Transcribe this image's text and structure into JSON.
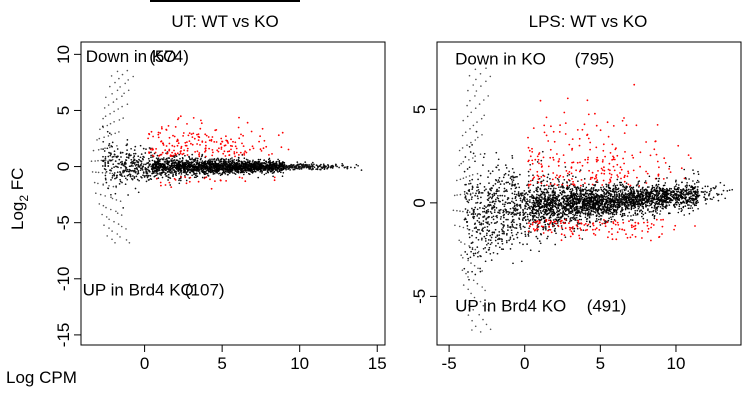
{
  "chart_data": [
    {
      "type": "scatter",
      "title": "UT: WT vs KO",
      "xlabel": "Log CPM",
      "ylabel_main": "Log",
      "ylabel_sub": "2",
      "ylabel_tail": " FC",
      "xlim": [
        -4.1,
        15.5
      ],
      "ylim": [
        -15.9,
        11.1
      ],
      "x_ticks": [
        0,
        5,
        10,
        15
      ],
      "y_ticks": [
        10,
        5,
        0,
        -5,
        -10,
        -15
      ],
      "annotations": [
        {
          "text": "Down in KO",
          "at": [
            -3.8,
            9.3
          ]
        },
        {
          "text": "(574)",
          "at": [
            0.3,
            9.3
          ]
        },
        {
          "text": "UP in Brd4 KO",
          "at": [
            -4.0,
            -11.5
          ]
        },
        {
          "text": "(107)",
          "at": [
            2.6,
            -11.5
          ]
        }
      ],
      "series": [
        {
          "color": "#000000",
          "extent": {
            "xmin": -3.5,
            "xmax": 14.3,
            "ymin": -7.0,
            "ymax": 8.8
          }
        },
        {
          "color": "#ff0000",
          "extent": {
            "xmin": 0.0,
            "xmax": 9.5,
            "ymin": -0.5,
            "ymax": 8.5
          }
        }
      ]
    },
    {
      "type": "scatter",
      "title": "LPS: WT vs KO",
      "xlabel": "",
      "xlim": [
        -5.8,
        14.3
      ],
      "ylim": [
        -7.6,
        8.6
      ],
      "x_ticks": [
        -5,
        0,
        5,
        10
      ],
      "y_ticks": [
        5,
        0,
        -5
      ],
      "annotations": [
        {
          "text": "Down in KO",
          "at": [
            -4.6,
            7.4
          ]
        },
        {
          "text": "(795)",
          "at": [
            3.3,
            7.4
          ]
        },
        {
          "text": "UP in Brd4 KO",
          "at": [
            -4.6,
            -5.8
          ]
        },
        {
          "text": "(491)",
          "at": [
            4.1,
            -5.8
          ]
        }
      ],
      "series": [
        {
          "color": "#000000",
          "extent": {
            "xmin": -4.8,
            "xmax": 13.8,
            "ymin": -7.0,
            "ymax": 7.5
          }
        },
        {
          "color": "#ff0000",
          "extent": {
            "xmin": 0.0,
            "xmax": 11.5,
            "ymin": -2.0,
            "ymax": 7.5
          }
        }
      ]
    }
  ]
}
